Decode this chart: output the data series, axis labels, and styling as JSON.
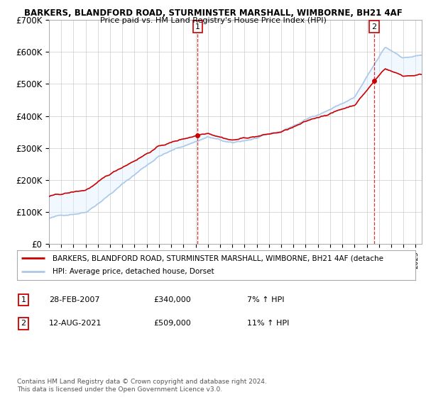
{
  "title1": "BARKERS, BLANDFORD ROAD, STURMINSTER MARSHALL, WIMBORNE, BH21 4AF",
  "title2": "Price paid vs. HM Land Registry's House Price Index (HPI)",
  "ylim": [
    0,
    700000
  ],
  "yticks": [
    0,
    100000,
    200000,
    300000,
    400000,
    500000,
    600000,
    700000
  ],
  "ytick_labels": [
    "£0",
    "£100K",
    "£200K",
    "£300K",
    "£400K",
    "£500K",
    "£600K",
    "£700K"
  ],
  "legend_line1": "BARKERS, BLANDFORD ROAD, STURMINSTER MARSHALL, WIMBORNE, BH21 4AF (detache",
  "legend_line2": "HPI: Average price, detached house, Dorset",
  "annotation1_label": "1",
  "annotation1_date": "28-FEB-2007",
  "annotation1_price": "£340,000",
  "annotation1_hpi": "7% ↑ HPI",
  "annotation2_label": "2",
  "annotation2_date": "12-AUG-2021",
  "annotation2_price": "£509,000",
  "annotation2_hpi": "11% ↑ HPI",
  "footer1": "Contains HM Land Registry data © Crown copyright and database right 2024.",
  "footer2": "This data is licensed under the Open Government Licence v3.0.",
  "sale1_x": 2007.167,
  "sale1_y": 340000,
  "sale2_x": 2021.617,
  "sale2_y": 509000,
  "vline1_x": 2007.167,
  "vline2_x": 2021.617,
  "hpi_color": "#aac8e8",
  "fill_color": "#ddeeff",
  "price_color": "#cc0000",
  "dot_color": "#cc0000",
  "vline_color": "#cc0000",
  "background_color": "#ffffff",
  "grid_color": "#cccccc",
  "xmin": 1995,
  "xmax": 2025.5
}
